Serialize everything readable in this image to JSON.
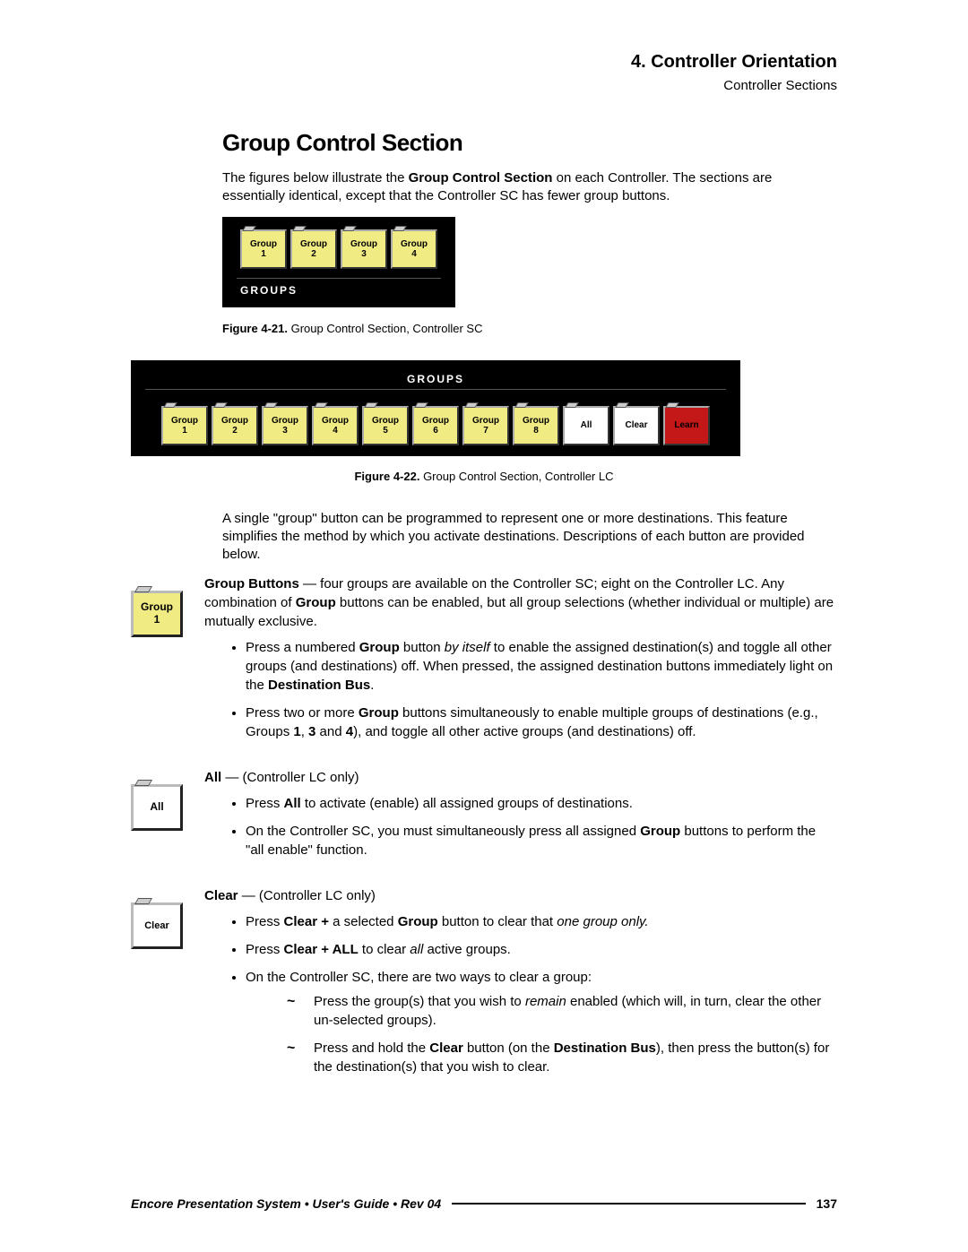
{
  "header": {
    "chapter": "4.  Controller Orientation",
    "section": "Controller Sections"
  },
  "title": "Group Control Section",
  "intro_pre": "The figures below illustrate the ",
  "intro_bold": "Group Control Section",
  "intro_post": " on each Controller.  The sections are essentially identical, except that the Controller SC has fewer group buttons.",
  "panel_sc": {
    "buttons": [
      {
        "l1": "Group",
        "l2": "1"
      },
      {
        "l1": "Group",
        "l2": "2"
      },
      {
        "l1": "Group",
        "l2": "3"
      },
      {
        "l1": "Group",
        "l2": "4"
      }
    ],
    "label": "GROUPS"
  },
  "caption_sc": {
    "fig": "Figure 4-21.",
    "text": "  Group Control Section, Controller SC"
  },
  "panel_lc": {
    "label": "GROUPS",
    "buttons": [
      {
        "l1": "Group",
        "l2": "1",
        "cls": "yellow"
      },
      {
        "l1": "Group",
        "l2": "2",
        "cls": "yellow"
      },
      {
        "l1": "Group",
        "l2": "3",
        "cls": "yellow"
      },
      {
        "l1": "Group",
        "l2": "4",
        "cls": "yellow"
      },
      {
        "l1": "Group",
        "l2": "5",
        "cls": "yellow"
      },
      {
        "l1": "Group",
        "l2": "6",
        "cls": "yellow"
      },
      {
        "l1": "Group",
        "l2": "7",
        "cls": "yellow"
      },
      {
        "l1": "Group",
        "l2": "8",
        "cls": "yellow"
      },
      {
        "l1": "All",
        "l2": "",
        "cls": "white"
      },
      {
        "l1": "Clear",
        "l2": "",
        "cls": "white"
      },
      {
        "l1": "Learn",
        "l2": "",
        "cls": "red"
      }
    ]
  },
  "caption_lc": {
    "fig": "Figure 4-22.",
    "text": "  Group Control Section, Controller LC"
  },
  "para2": "A single \"group\" button can be programmed to represent one or more destinations.  This feature simplifies the method by which you activate destinations.  Descriptions of each button are provided below.",
  "groupBtn": {
    "l1": "Group",
    "l2": "1"
  },
  "allBtn": {
    "l1": "All"
  },
  "clearBtn": {
    "l1": "Clear"
  },
  "group_desc": {
    "lead_bold": "Group Buttons",
    "lead_rest": " — four groups are available on the Controller SC; eight on the Controller LC.  Any combination of ",
    "lead_bold2": "Group",
    "lead_rest2": " buttons can be enabled, but all group selections (whether individual or multiple) are mutually exclusive.",
    "b1_pre": "Press a numbered ",
    "b1_b": "Group",
    "b1_mid": " button ",
    "b1_i": "by itself",
    "b1_post": " to enable the assigned destination(s) and toggle all other groups (and destinations) off.  When pressed, the assigned destination buttons immediately light on the ",
    "b1_b2": "Destination Bus",
    "b1_end": ".",
    "b2_pre": "Press two or more ",
    "b2_b": "Group",
    "b2_mid": " buttons simultaneously to enable multiple groups of destinations (e.g., Groups ",
    "b2_b2": "1",
    "b2_comma": ", ",
    "b2_b3": "3",
    "b2_and": " and ",
    "b2_b4": "4",
    "b2_post": "), and toggle all other active groups (and destinations) off."
  },
  "all_desc": {
    "lead_b": "All",
    "lead_rest": " — (Controller LC only)",
    "b1_pre": "Press ",
    "b1_b": "All",
    "b1_post": " to activate (enable) all assigned groups of destinations.",
    "b2_pre": "On the Controller SC, you must simultaneously press all assigned ",
    "b2_b": "Group",
    "b2_post": " buttons to perform the \"all enable\" function."
  },
  "clear_desc": {
    "lead_b": "Clear",
    "lead_rest": " — (Controller LC only)",
    "b1_pre": "Press ",
    "b1_b": "Clear + ",
    "b1_mid": "a selected ",
    "b1_b2": "Group",
    "b1_mid2": " button to clear that ",
    "b1_i": "one group only.",
    "b2_pre": "Press ",
    "b2_b": "Clear + ALL",
    "b2_mid": " to clear ",
    "b2_i": "all",
    "b2_post": " active groups.",
    "b3": "On the Controller SC, there are two ways to clear a group:",
    "t1_pre": "Press the group(s) that you wish to ",
    "t1_i": "remain",
    "t1_post": " enabled (which will, in turn, clear the other un-selected groups).",
    "t2_pre": "Press and hold the ",
    "t2_b": "Clear",
    "t2_mid": " button (on the ",
    "t2_b2": "Destination Bus",
    "t2_post": "), then press the button(s) for the destination(s) that you wish to clear."
  },
  "footer": {
    "title": "Encore Presentation System  •  User's Guide  •  Rev 04",
    "page": "137"
  }
}
